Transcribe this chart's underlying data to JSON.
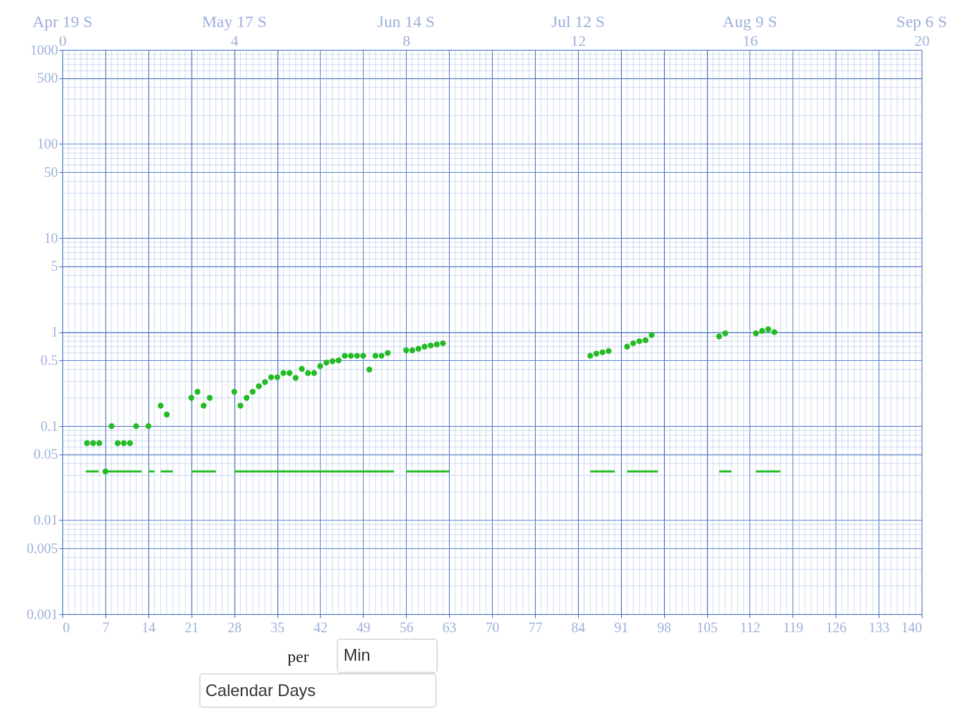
{
  "chart_data": {
    "type": "scatter",
    "xlabel": "Calendar Days",
    "annotations": [
      "per",
      "Min",
      "Apr 19 S",
      "May 17 S",
      "Jun 14 S",
      "Jul 12 S",
      "Aug 9 S",
      "Sep 6 S"
    ],
    "series": [
      {
        "color": "#22bb22",
        "marker": "circle",
        "x": [
          4,
          5,
          6,
          7,
          8,
          9,
          10,
          11,
          12,
          14,
          16,
          17,
          21,
          22,
          23,
          24,
          28,
          29,
          30,
          31,
          32,
          33,
          34,
          35,
          36,
          37,
          38,
          39,
          40,
          41,
          42,
          43,
          44,
          45,
          46,
          47,
          48,
          49,
          50,
          51,
          52,
          53,
          56,
          57,
          58,
          59,
          60,
          61,
          62,
          86,
          87,
          88,
          89,
          92,
          93,
          94,
          95,
          96,
          107,
          108,
          113,
          114,
          115,
          116
        ],
        "values": [
          0.066,
          0.066,
          0.066,
          0.033,
          0.1,
          0.066,
          0.066,
          0.066,
          0.1,
          0.1,
          0.165,
          0.133,
          0.2,
          0.232,
          0.165,
          0.2,
          0.232,
          0.165,
          0.2,
          0.232,
          0.266,
          0.294,
          0.331,
          0.331,
          0.367,
          0.367,
          0.326,
          0.406,
          0.367,
          0.367,
          0.435,
          0.473,
          0.49,
          0.5,
          0.56,
          0.56,
          0.56,
          0.56,
          0.4,
          0.56,
          0.56,
          0.6,
          0.64,
          0.64,
          0.665,
          0.7,
          0.72,
          0.74,
          0.76,
          0.56,
          0.59,
          0.61,
          0.63,
          0.7,
          0.76,
          0.8,
          0.82,
          0.93,
          0.9,
          0.97,
          0.97,
          1.03,
          1.07,
          1.0
        ]
      },
      {
        "type": "line",
        "color": "#22bb22",
        "line_style": "solid",
        "x": [
          3.8,
          5.9,
          null,
          7,
          12.9,
          null,
          14,
          15,
          null,
          16,
          18,
          null,
          21,
          25,
          null,
          28,
          54,
          null,
          56,
          63,
          null,
          86,
          90,
          null,
          92,
          97,
          null,
          107,
          109,
          null,
          113,
          117
        ],
        "values": [
          0.033,
          0.033,
          null,
          0.033,
          0.033,
          null,
          0.033,
          0.033,
          null,
          0.033,
          0.033,
          null,
          0.033,
          0.033,
          null,
          0.033,
          0.033,
          null,
          0.033,
          0.033,
          null,
          0.033,
          0.033,
          null,
          0.033,
          0.033,
          null,
          0.033,
          0.033,
          null,
          0.033,
          0.033
        ]
      }
    ],
    "log": "y",
    "grid": true,
    "xlim": [
      0,
      140
    ],
    "xticks": [
      0,
      7,
      14,
      21,
      28,
      35,
      42,
      49,
      56,
      63,
      70,
      77,
      84,
      91,
      98,
      105,
      112,
      119,
      126,
      133,
      140
    ],
    "ylim": [
      0.001,
      1000
    ],
    "yticks": [
      0.001,
      0.005,
      0.01,
      0.05,
      0.1,
      0.5,
      1,
      5,
      10,
      50,
      100,
      500,
      1000
    ],
    "x2lim": [
      0,
      20
    ],
    "x2ticks": [
      0,
      4,
      8,
      12,
      16,
      20
    ]
  }
}
